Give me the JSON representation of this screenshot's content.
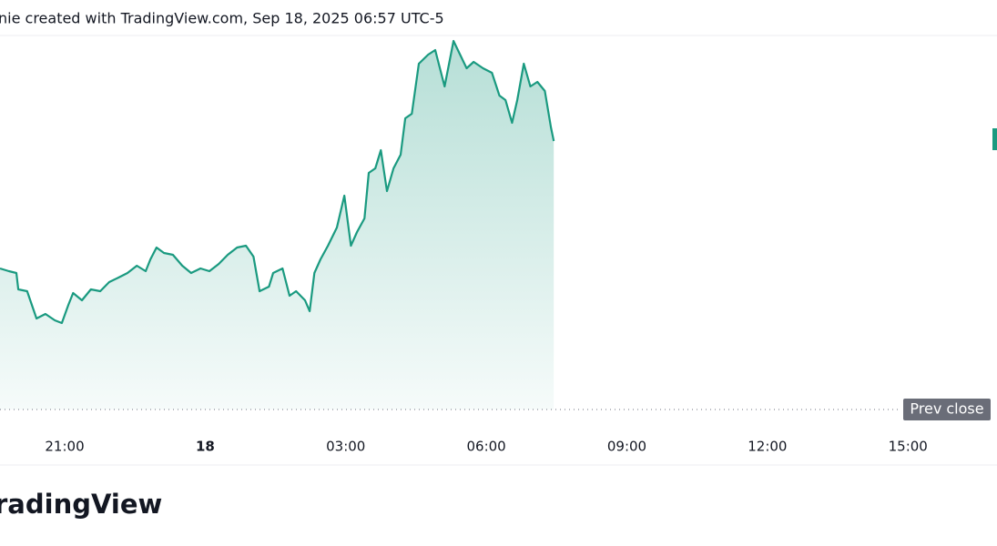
{
  "chart_data": {
    "type": "line",
    "title": "nie created with TradingView.com, Sep 18, 2025 06:57 UTC-5",
    "logo": "radingView",
    "color": "#1a9a80",
    "x": [
      19.62,
      19.81,
      19.97,
      20.01,
      20.2,
      20.4,
      20.59,
      20.79,
      20.94,
      21.08,
      21.18,
      21.37,
      21.56,
      21.76,
      21.95,
      22.15,
      22.34,
      22.54,
      22.73,
      22.83,
      22.96,
      23.12,
      23.31,
      23.51,
      23.7,
      23.9,
      24.09,
      24.29,
      24.48,
      24.68,
      24.87,
      25.03,
      25.16,
      25.36,
      25.45,
      25.65,
      25.8,
      25.94,
      26.13,
      26.23,
      26.33,
      26.46,
      26.62,
      26.81,
      26.97,
      27.11,
      27.24,
      27.4,
      27.49,
      27.63,
      27.75,
      27.88,
      28.02,
      28.17,
      28.27,
      28.41,
      28.56,
      28.76,
      28.91,
      29.11,
      29.3,
      29.44,
      29.58,
      29.73,
      29.93,
      30.12,
      30.28,
      30.41,
      30.55,
      30.66,
      30.8,
      30.94,
      31.09,
      31.25,
      31.38,
      31.44
    ],
    "values": [
      38.75,
      38,
      37.5,
      33,
      32.5,
      25,
      26.25,
      24.5,
      23.75,
      28.75,
      32,
      30,
      33,
      32.5,
      35,
      36.25,
      37.5,
      39.5,
      38,
      41.25,
      44.5,
      43,
      42.5,
      39.5,
      37.5,
      38.75,
      38,
      40,
      42.5,
      44.5,
      45,
      42,
      32.5,
      33.75,
      37.5,
      38.75,
      31.25,
      32.5,
      30,
      27,
      37.5,
      41.25,
      45,
      50,
      58.75,
      45,
      48.75,
      52.5,
      65,
      66.25,
      71.25,
      60,
      66.25,
      70,
      80,
      81.25,
      95,
      97.5,
      98.75,
      88.75,
      101.25,
      97.5,
      93.75,
      95.5,
      93.75,
      92.5,
      86.25,
      85,
      78.75,
      85,
      95,
      88.75,
      90,
      87.5,
      77.5,
      73.75
    ],
    "xlim": [
      19.62,
      40.9
    ],
    "xticks": [
      {
        "value": 21,
        "label": "21:00"
      },
      {
        "value": 24,
        "label": "18"
      },
      {
        "value": 27,
        "label": "03:00"
      },
      {
        "value": 30,
        "label": "06:00"
      },
      {
        "value": 33,
        "label": "09:00"
      },
      {
        "value": 36,
        "label": "12:00"
      },
      {
        "value": 39,
        "label": "15:00"
      }
    ],
    "ylim": [
      -5,
      102.5
    ],
    "prev_close": {
      "label": "Prev close",
      "value": 0
    }
  }
}
